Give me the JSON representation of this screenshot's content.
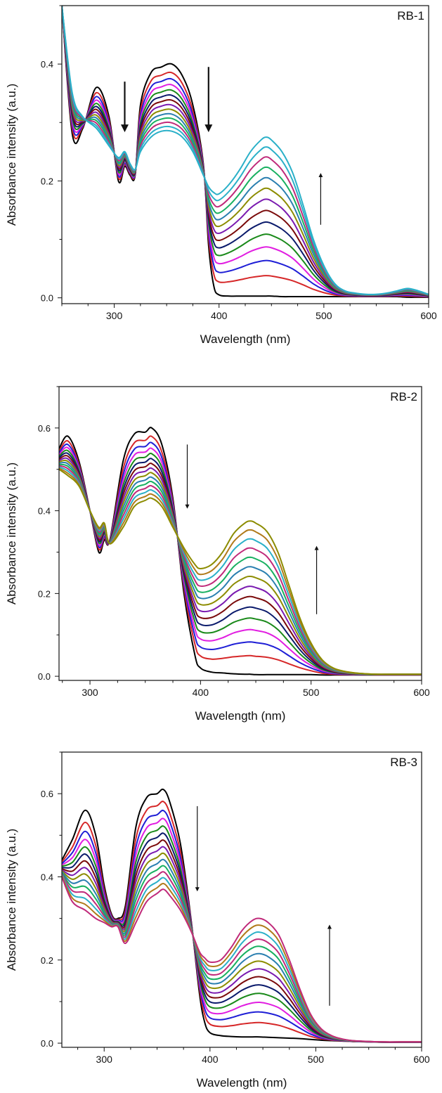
{
  "colors": [
    "#000000",
    "#d62728",
    "#1f1fd6",
    "#e11ee1",
    "#1a8a1a",
    "#0a1a6b",
    "#7a0a0a",
    "#7a1ab0",
    "#8c8c00",
    "#2a7fb0",
    "#18b060",
    "#c02a7a",
    "#2ab0c8",
    "#b07a1a",
    "#5a5a5a"
  ],
  "chart_data": [
    {
      "type": "line",
      "title": "RB-1",
      "xlabel": "Wavelength (nm)",
      "ylabel": "Absorbance intensity (a.u.)",
      "xlim": [
        250,
        600
      ],
      "ylim": [
        -0.01,
        0.5
      ],
      "xticks": [
        300,
        400,
        500,
        600
      ],
      "yticks": [
        0.0,
        0.2,
        0.4
      ],
      "ytick_labels": [
        "0.0",
        "0.2",
        "0.4"
      ],
      "n_series": 14,
      "first_series_color_index": 0,
      "final_series_color": "#2ab0c8",
      "x": [
        250,
        260,
        270,
        283,
        295,
        304,
        310,
        315,
        320,
        325,
        335,
        345,
        355,
        365,
        375,
        385,
        390,
        395,
        400,
        410,
        420,
        430,
        440,
        445,
        450,
        460,
        470,
        480,
        490,
        500,
        510,
        520,
        530,
        540,
        550,
        560,
        570,
        580,
        590,
        600
      ],
      "series_start": [
        0.5,
        0.28,
        0.29,
        0.36,
        0.31,
        0.2,
        0.225,
        0.21,
        0.21,
        0.33,
        0.385,
        0.395,
        0.4,
        0.38,
        0.33,
        0.23,
        0.09,
        0.02,
        0.005,
        0.003,
        0.003,
        0.003,
        0.003,
        0.003,
        0.003,
        0.002,
        0.002,
        0.002,
        0.002,
        0.002,
        0.002,
        0.002,
        0.002,
        0.002,
        0.002,
        0.002,
        0.002,
        0.001,
        0.001,
        0.001
      ],
      "series_end": [
        0.5,
        0.35,
        0.31,
        0.29,
        0.26,
        0.24,
        0.25,
        0.23,
        0.22,
        0.25,
        0.275,
        0.285,
        0.285,
        0.275,
        0.25,
        0.21,
        0.19,
        0.18,
        0.178,
        0.195,
        0.22,
        0.25,
        0.27,
        0.275,
        0.27,
        0.25,
        0.215,
        0.16,
        0.1,
        0.055,
        0.025,
        0.012,
        0.008,
        0.006,
        0.006,
        0.008,
        0.012,
        0.016,
        0.012,
        0.006
      ],
      "arrows": [
        {
          "x": 310,
          "y_from": 0.37,
          "y_to": 0.29,
          "weight": "bold"
        },
        {
          "x": 390,
          "y_from": 0.395,
          "y_to": 0.29,
          "weight": "bold"
        },
        {
          "x": 497,
          "y_from": 0.125,
          "y_to": 0.21,
          "weight": "normal"
        }
      ]
    },
    {
      "type": "line",
      "title": "RB-2",
      "xlabel": "Wavelength (nm)",
      "ylabel": "Absorbance intensity (a.u.)",
      "xlim": [
        272,
        600
      ],
      "ylim": [
        -0.01,
        0.7
      ],
      "xticks": [
        300,
        400,
        500,
        600
      ],
      "yticks": [
        0.0,
        0.2,
        0.4,
        0.6
      ],
      "ytick_labels": [
        "0.0",
        "0.2",
        "0.4",
        "0.6"
      ],
      "n_series": 15,
      "first_series_color_index": 0,
      "final_series_color": "#8c8c00",
      "x": [
        272,
        280,
        290,
        300,
        308,
        313,
        318,
        330,
        340,
        350,
        356,
        365,
        375,
        385,
        395,
        400,
        410,
        420,
        430,
        440,
        445,
        450,
        460,
        470,
        480,
        490,
        500,
        510,
        520,
        530,
        540,
        550,
        560,
        570,
        580,
        590,
        600
      ],
      "series_start": [
        0.55,
        0.58,
        0.52,
        0.4,
        0.3,
        0.33,
        0.33,
        0.52,
        0.585,
        0.59,
        0.6,
        0.56,
        0.43,
        0.2,
        0.05,
        0.02,
        0.01,
        0.008,
        0.006,
        0.005,
        0.005,
        0.004,
        0.004,
        0.004,
        0.004,
        0.004,
        0.004,
        0.003,
        0.003,
        0.003,
        0.003,
        0.003,
        0.003,
        0.003,
        0.003,
        0.003,
        0.003
      ],
      "series_end": [
        0.5,
        0.485,
        0.46,
        0.4,
        0.36,
        0.37,
        0.32,
        0.36,
        0.41,
        0.425,
        0.43,
        0.41,
        0.36,
        0.31,
        0.27,
        0.26,
        0.27,
        0.3,
        0.345,
        0.37,
        0.375,
        0.37,
        0.35,
        0.3,
        0.22,
        0.14,
        0.08,
        0.04,
        0.02,
        0.012,
        0.008,
        0.006,
        0.005,
        0.005,
        0.005,
        0.005,
        0.005
      ],
      "arrows": [
        {
          "x": 388,
          "y_from": 0.56,
          "y_to": 0.41,
          "weight": "normal"
        },
        {
          "x": 505,
          "y_from": 0.15,
          "y_to": 0.31,
          "weight": "normal"
        }
      ]
    },
    {
      "type": "line",
      "title": "RB-3",
      "xlabel": "Wavelength (nm)",
      "ylabel": "Absorbance intensity (a.u.)",
      "xlim": [
        260,
        600
      ],
      "ylim": [
        -0.01,
        0.7
      ],
      "xticks": [
        300,
        400,
        500,
        600
      ],
      "yticks": [
        0.0,
        0.2,
        0.4,
        0.6
      ],
      "ytick_labels": [
        "0.0",
        "0.2",
        "0.4",
        "0.6"
      ],
      "n_series": 15,
      "first_series_color_index": 0,
      "final_series_color": "#c02a7a",
      "x": [
        260,
        270,
        282,
        292,
        300,
        307,
        313,
        320,
        330,
        340,
        350,
        356,
        362,
        372,
        382,
        390,
        395,
        400,
        410,
        420,
        430,
        440,
        447,
        455,
        465,
        475,
        485,
        495,
        505,
        515,
        525,
        535,
        550,
        565,
        580,
        600
      ],
      "series_start": [
        0.44,
        0.49,
        0.56,
        0.5,
        0.38,
        0.31,
        0.3,
        0.33,
        0.52,
        0.59,
        0.6,
        0.61,
        0.58,
        0.48,
        0.3,
        0.12,
        0.05,
        0.025,
        0.018,
        0.016,
        0.015,
        0.015,
        0.015,
        0.014,
        0.013,
        0.012,
        0.011,
        0.009,
        0.007,
        0.006,
        0.005,
        0.004,
        0.003,
        0.002,
        0.002,
        0.002
      ],
      "series_end": [
        0.4,
        0.34,
        0.32,
        0.3,
        0.29,
        0.28,
        0.28,
        0.24,
        0.29,
        0.34,
        0.36,
        0.37,
        0.355,
        0.32,
        0.27,
        0.22,
        0.205,
        0.195,
        0.2,
        0.23,
        0.27,
        0.295,
        0.3,
        0.29,
        0.26,
        0.2,
        0.13,
        0.07,
        0.035,
        0.018,
        0.01,
        0.006,
        0.004,
        0.003,
        0.003,
        0.003
      ],
      "arrows": [
        {
          "x": 388,
          "y_from": 0.57,
          "y_to": 0.37,
          "weight": "normal"
        },
        {
          "x": 513,
          "y_from": 0.09,
          "y_to": 0.28,
          "weight": "normal"
        }
      ]
    }
  ]
}
